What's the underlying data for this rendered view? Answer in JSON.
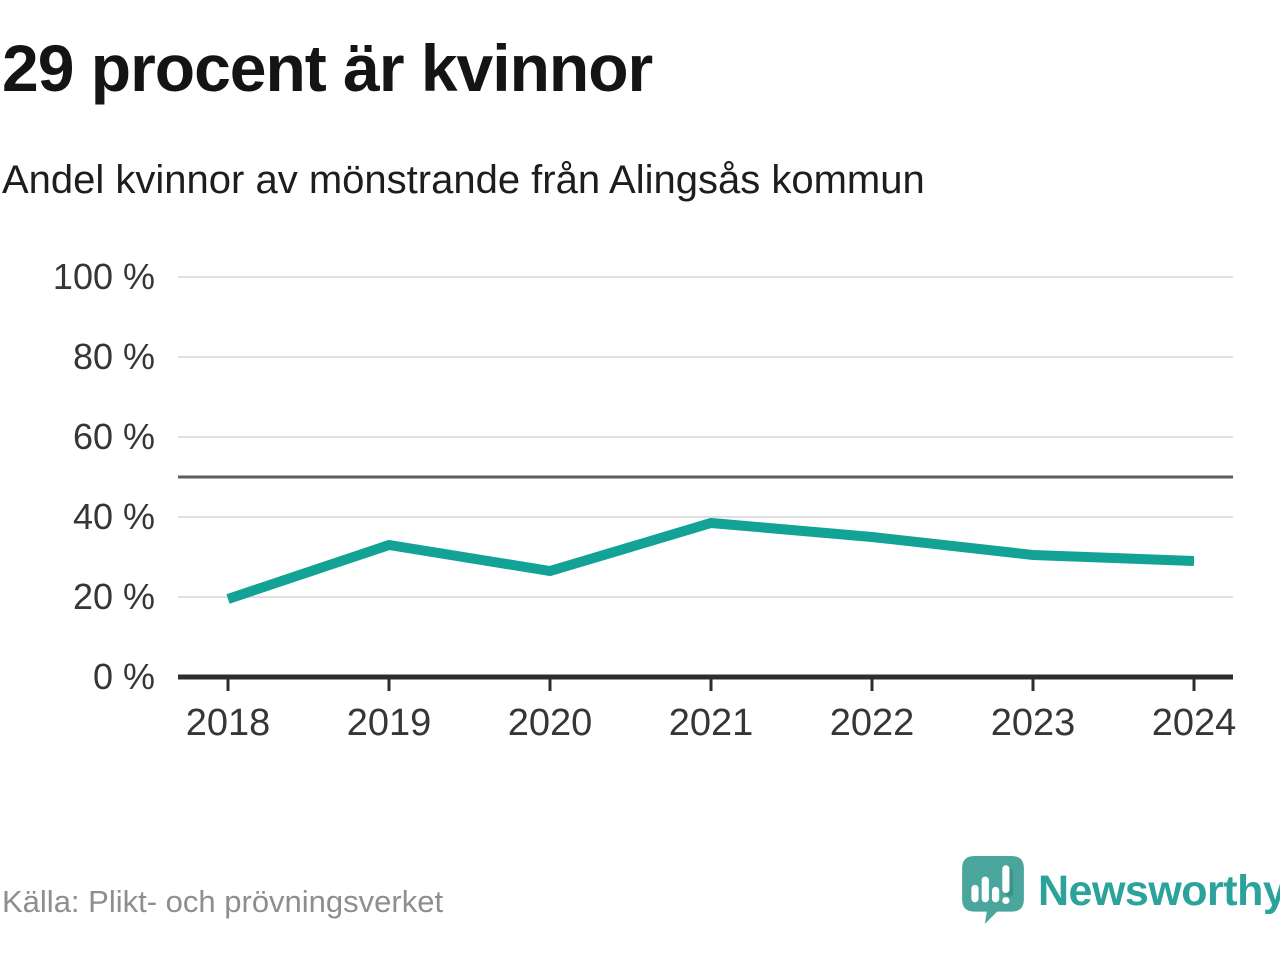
{
  "header": {
    "title": "29 procent är kvinnor",
    "subtitle": "Andel kvinnor av mönstrande från Alingsås kommun"
  },
  "chart_data": {
    "type": "line",
    "x": [
      2018,
      2019,
      2020,
      2021,
      2022,
      2023,
      2024
    ],
    "series": [
      {
        "name": "Andel kvinnor av mönstrande",
        "values": [
          19.5,
          33,
          26.5,
          38.5,
          35,
          30.5,
          29
        ]
      }
    ],
    "title": "29 procent är kvinnor",
    "subtitle": "Andel kvinnor av mönstrande från Alingsås kommun",
    "xlabel": "",
    "ylabel": "",
    "ylim": [
      0,
      100
    ],
    "yticks": [
      0,
      20,
      40,
      60,
      80,
      100
    ],
    "ytick_suffix": " %",
    "reference_line": 50,
    "grid": "horizontal",
    "legend": "none",
    "line_color": "#12a296"
  },
  "footer": {
    "source": "Källa: Plikt- och prövningsverket",
    "brand": "Newsworthy"
  },
  "colors": {
    "line": "#12a296",
    "grid": "#e0e0e0",
    "reference_line": "#585d63",
    "axis": "#2d2d2d",
    "tick_text": "#363636",
    "title_text": "#141414",
    "source_text": "#8e8e8e",
    "brand_teal": "#2ba39a",
    "logo_bubble": "#4aa69d"
  }
}
